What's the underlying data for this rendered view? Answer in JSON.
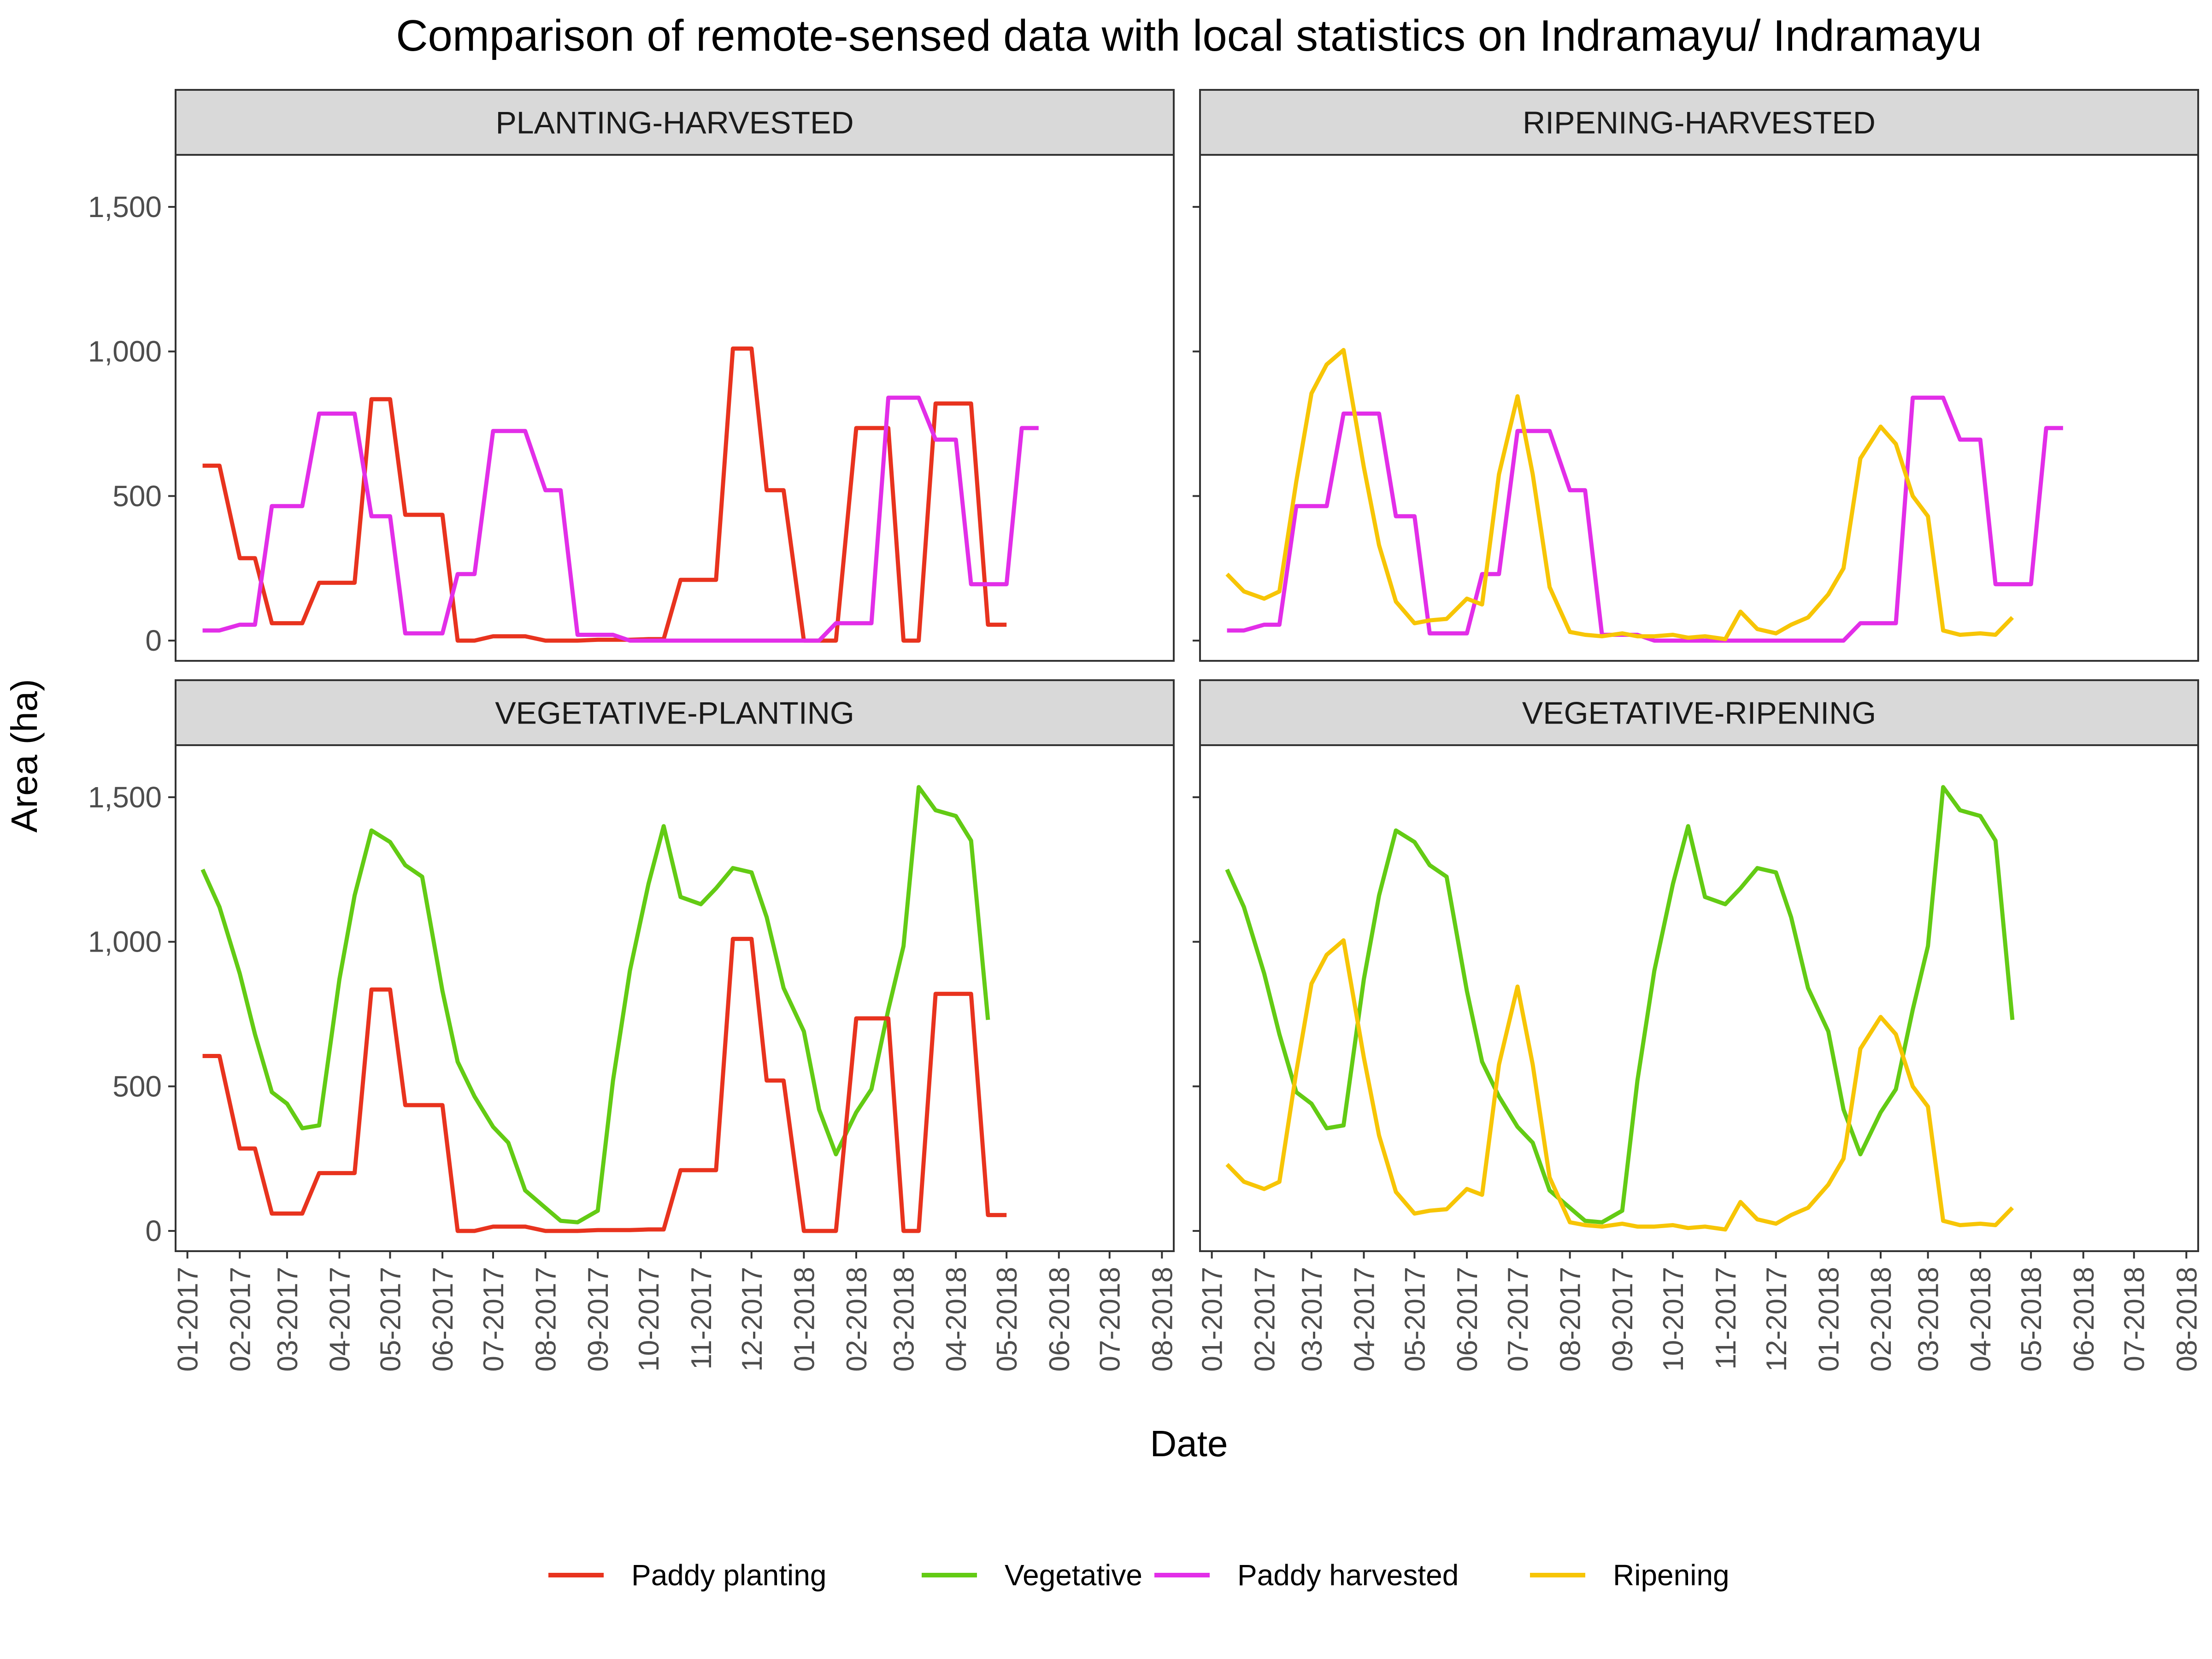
{
  "title": "Comparison of remote-sensed data with local statistics on Indramayu/ Indramayu",
  "xlabel": "Date",
  "ylabel": "Area (ha)",
  "colors": {
    "Paddy planting": "#e8331e",
    "Vegetative": "#63cb14",
    "Paddy harvested": "#e22ee8",
    "Ripening": "#f7c505"
  },
  "chart_data": {
    "type": "line",
    "title": "Comparison of remote-sensed data with local statistics on Indramayu/ Indramayu",
    "xlabel": "Date",
    "ylabel": "Area (ha)",
    "x_tick_labels": [
      "01-2017",
      "02-2017",
      "03-2017",
      "04-2017",
      "05-2017",
      "06-2017",
      "07-2017",
      "08-2017",
      "09-2017",
      "10-2017",
      "11-2017",
      "12-2017",
      "01-2018",
      "02-2018",
      "03-2018",
      "04-2018",
      "05-2018",
      "06-2018",
      "07-2018",
      "08-2018"
    ],
    "y_ticks": [
      0,
      500,
      1000,
      1500
    ],
    "y_tick_labels": [
      "0",
      "500",
      "1,000",
      "1,500"
    ],
    "ylim": [
      -70,
      1680
    ],
    "xlim": [
      "2016-12-25",
      "2018-08-08"
    ],
    "grid": false,
    "legend_position": "bottom",
    "legend": [
      "Paddy planting",
      "Vegetative",
      "Paddy harvested",
      "Ripening"
    ],
    "x": [
      "2017-01-10",
      "2017-01-20",
      "2017-02-01",
      "2017-02-10",
      "2017-02-20",
      "2017-03-01",
      "2017-03-10",
      "2017-03-20",
      "2017-04-01",
      "2017-04-10",
      "2017-04-20",
      "2017-05-01",
      "2017-05-10",
      "2017-05-20",
      "2017-06-01",
      "2017-06-10",
      "2017-06-20",
      "2017-07-01",
      "2017-07-10",
      "2017-07-20",
      "2017-08-01",
      "2017-08-10",
      "2017-08-20",
      "2017-09-01",
      "2017-09-10",
      "2017-09-20",
      "2017-10-01",
      "2017-10-10",
      "2017-10-20",
      "2017-11-01",
      "2017-11-10",
      "2017-11-20",
      "2017-12-01",
      "2017-12-10",
      "2017-12-20",
      "2018-01-01",
      "2018-01-10",
      "2018-01-20",
      "2018-02-01",
      "2018-02-10",
      "2018-02-20",
      "2018-03-01",
      "2018-03-10",
      "2018-03-20",
      "2018-04-01",
      "2018-04-10",
      "2018-04-20",
      "2018-05-01",
      "2018-05-10",
      "2018-05-20",
      "2018-06-01",
      "2018-06-10",
      "2018-06-20",
      "2018-07-01",
      "2018-07-10",
      "2018-07-20"
    ],
    "series": [
      {
        "name": "Paddy planting",
        "values": [
          605,
          605,
          285,
          285,
          60,
          60,
          60,
          200,
          200,
          200,
          835,
          835,
          435,
          435,
          435,
          0,
          0,
          15,
          15,
          15,
          0,
          0,
          0,
          3,
          3,
          3,
          5,
          5,
          210,
          210,
          210,
          1010,
          1010,
          520,
          520,
          0,
          0,
          0,
          735,
          735,
          735,
          0,
          0,
          820,
          820,
          820,
          55,
          55,
          null,
          null,
          null,
          null,
          null,
          null,
          null,
          null
        ]
      },
      {
        "name": "Vegetative",
        "values": [
          1250,
          1120,
          890,
          680,
          480,
          440,
          355,
          365,
          870,
          1160,
          1385,
          1345,
          1265,
          1225,
          830,
          585,
          465,
          360,
          305,
          140,
          80,
          35,
          30,
          70,
          520,
          900,
          1200,
          1400,
          1155,
          1130,
          1185,
          1255,
          1240,
          1085,
          840,
          690,
          420,
          265,
          410,
          490,
          765,
          985,
          1535,
          1455,
          1435,
          1350,
          730,
          null,
          null,
          null,
          null,
          null,
          null,
          null,
          null,
          null
        ]
      },
      {
        "name": "Paddy harvested",
        "values": [
          35,
          35,
          55,
          55,
          465,
          465,
          465,
          785,
          785,
          785,
          430,
          430,
          25,
          25,
          25,
          230,
          230,
          725,
          725,
          725,
          520,
          520,
          20,
          20,
          20,
          0,
          0,
          0,
          0,
          0,
          0,
          0,
          0,
          0,
          0,
          0,
          0,
          60,
          60,
          60,
          840,
          840,
          840,
          695,
          695,
          195,
          195,
          195,
          735,
          735,
          null,
          null,
          null,
          null,
          null,
          null
        ]
      },
      {
        "name": "Ripening",
        "values": [
          230,
          170,
          145,
          170,
          550,
          855,
          955,
          1005,
          600,
          330,
          135,
          60,
          70,
          75,
          145,
          125,
          575,
          845,
          575,
          185,
          30,
          20,
          15,
          25,
          15,
          15,
          20,
          10,
          15,
          5,
          100,
          40,
          25,
          55,
          80,
          160,
          250,
          630,
          740,
          680,
          500,
          430,
          35,
          20,
          25,
          20,
          80,
          null,
          null,
          null,
          null,
          null,
          null,
          null,
          null,
          null
        ]
      }
    ],
    "panels": [
      {
        "strip": "PLANTING-HARVESTED",
        "series": [
          "Paddy planting",
          "Paddy harvested"
        ]
      },
      {
        "strip": "RIPENING-HARVESTED",
        "series": [
          "Paddy harvested",
          "Ripening"
        ]
      },
      {
        "strip": "VEGETATIVE-PLANTING",
        "series": [
          "Vegetative",
          "Paddy planting"
        ]
      },
      {
        "strip": "VEGETATIVE-RIPENING",
        "series": [
          "Vegetative",
          "Ripening"
        ]
      }
    ]
  }
}
